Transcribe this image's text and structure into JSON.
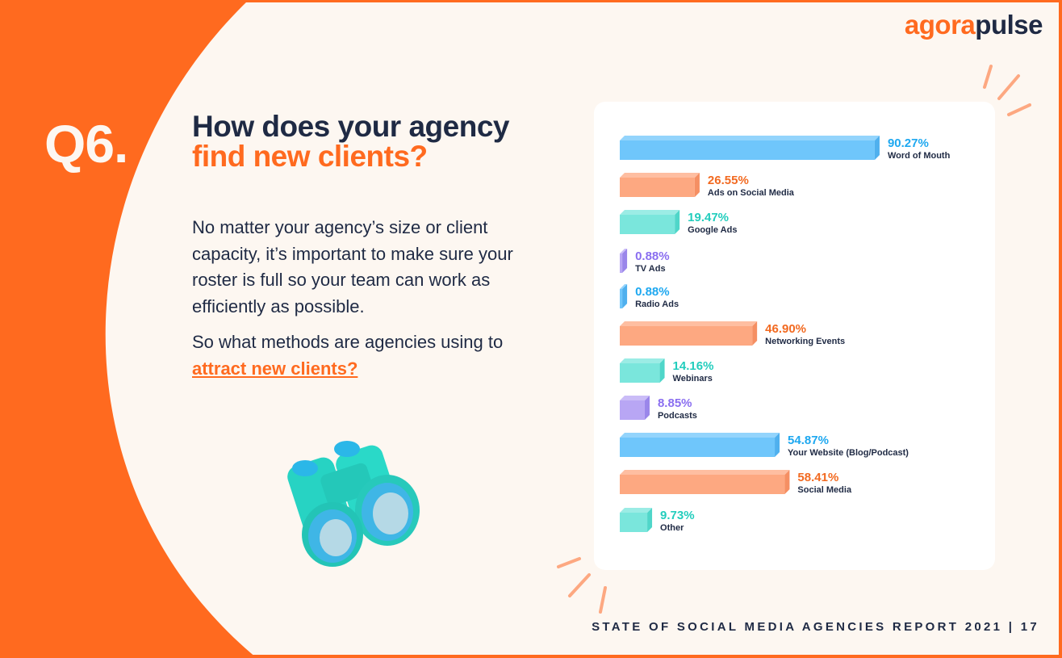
{
  "brand": {
    "logo_part1": "agora",
    "logo_part2": "pulse"
  },
  "question": {
    "number": "Q6.",
    "title_line1": "How does your agency",
    "title_line2": "find new clients?"
  },
  "body": {
    "paragraph1": "No matter your agency’s size or client capacity, it’s important to make sure your roster is full so your team can work as efficiently as possible.",
    "paragraph2_prefix": "So what methods are agencies using to ",
    "paragraph2_link": "attract new clients?"
  },
  "footer": {
    "text": "STATE OF SOCIAL MEDIA AGENCIES REPORT 2021 | 17"
  },
  "colors": {
    "orange": "#ff6a1f",
    "navy": "#1f2a44",
    "blue_bar": "#6fc6fb",
    "blue_text": "#1ea8f0",
    "peach_bar": "#fda881",
    "orange_text": "#f26a21",
    "teal_bar": "#7ae6dc",
    "teal_text": "#22cdbd",
    "purple_bar": "#b8a6f4",
    "purple_text": "#8a6ef0"
  },
  "chart_data": {
    "type": "bar",
    "orientation": "horizontal",
    "xlim": [
      0,
      100
    ],
    "categories": [
      "Word of Mouth",
      "Ads on Social Media",
      "Google Ads",
      "TV Ads",
      "Radio Ads",
      "Networking Events",
      "Webinars",
      "Podcasts",
      "Your Website (Blog/Podcast)",
      "Social Media",
      "Other"
    ],
    "values": [
      90.27,
      26.55,
      19.47,
      0.88,
      0.88,
      46.9,
      14.16,
      8.85,
      54.87,
      58.41,
      9.73
    ],
    "value_labels": [
      "90.27%",
      "26.55%",
      "19.47%",
      "0.88%",
      "0.88%",
      "46.90%",
      "14.16%",
      "8.85%",
      "54.87%",
      "58.41%",
      "9.73%"
    ],
    "bar_colors": [
      "blue",
      "peach",
      "teal",
      "purple",
      "blue",
      "peach",
      "teal",
      "purple",
      "blue",
      "peach",
      "teal"
    ]
  }
}
